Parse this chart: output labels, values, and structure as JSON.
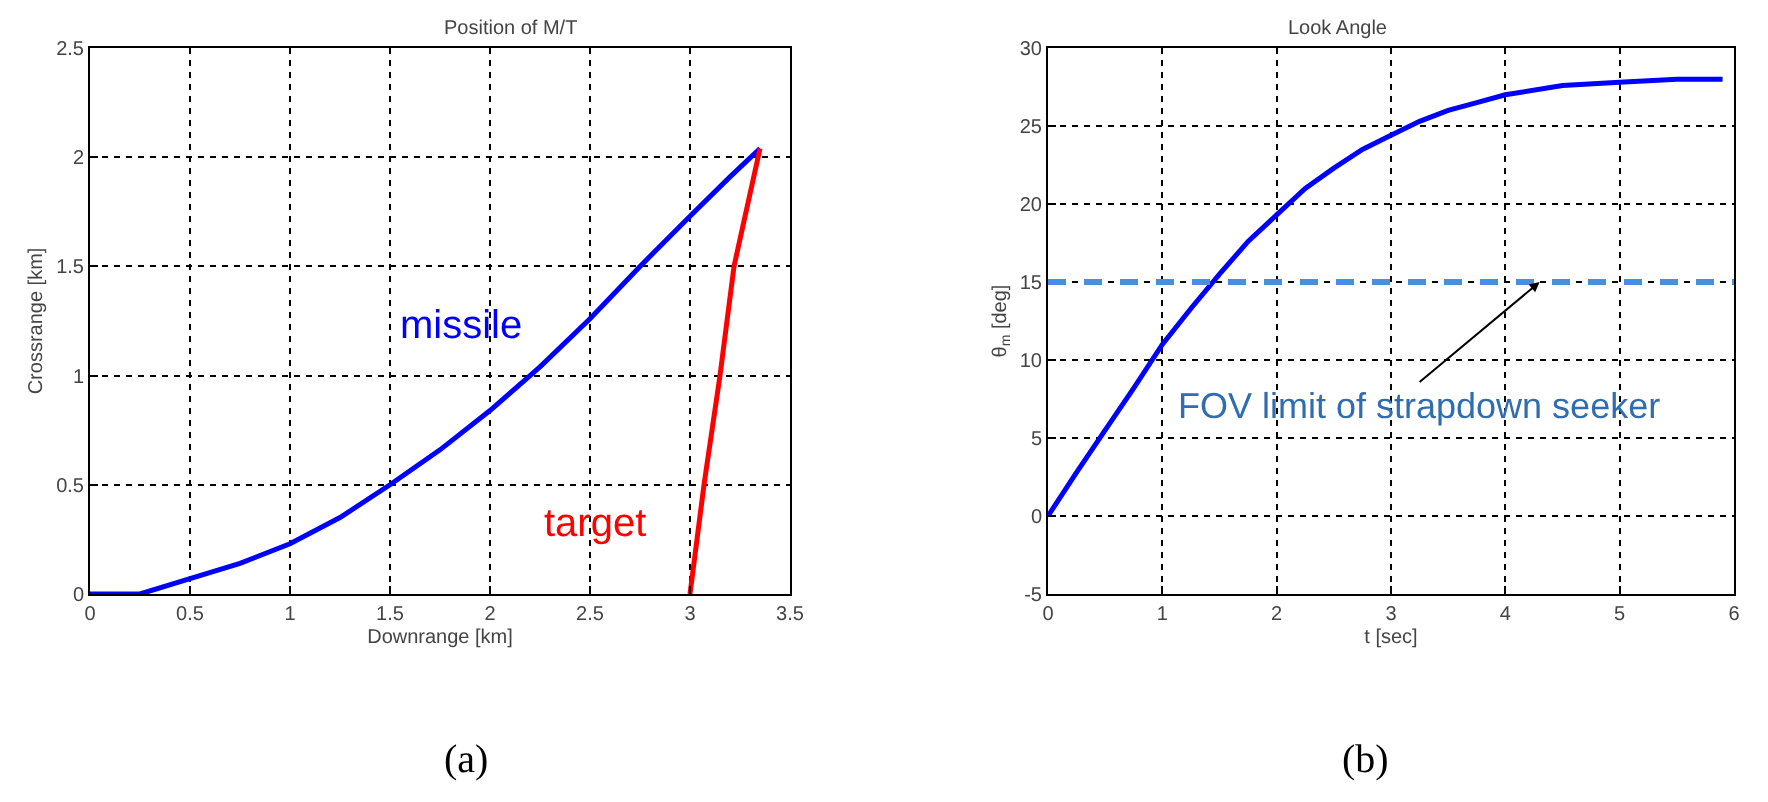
{
  "chart_data": [
    {
      "type": "line",
      "title": "Position of M/T",
      "xlabel": "Downrange [km]",
      "ylabel": "Crossrange [km]",
      "xlim": [
        0,
        3.5
      ],
      "xticks": [
        0,
        0.5,
        1,
        1.5,
        2,
        2.5,
        3,
        3.5
      ],
      "ylim": [
        0,
        2.5
      ],
      "yticks": [
        0,
        0.5,
        1,
        1.5,
        2,
        2.5
      ],
      "grid": true,
      "legend": false,
      "line_style": "solid",
      "marker": "none",
      "series": [
        {
          "name": "missile",
          "color": "#0000ff",
          "x": [
            0,
            0.25,
            0.5,
            0.75,
            1,
            1.25,
            1.5,
            1.75,
            2,
            2.25,
            2.5,
            2.75,
            3,
            3.2,
            3.35
          ],
          "values": [
            0,
            0,
            0.07,
            0.14,
            0.23,
            0.35,
            0.5,
            0.66,
            0.84,
            1.04,
            1.26,
            1.5,
            1.73,
            1.91,
            2.04
          ]
        },
        {
          "name": "target",
          "color": "#ff0000",
          "x": [
            3,
            3.07,
            3.15,
            3.22,
            3.35
          ],
          "values": [
            0,
            0.5,
            1,
            1.5,
            2.04
          ]
        }
      ],
      "annotations": [
        "(a)"
      ]
    },
    {
      "type": "line",
      "title": "Look Angle",
      "xlabel": "t [sec]",
      "ylabel": "θ$_{m}$ [deg]",
      "xlim": [
        0,
        6
      ],
      "xticks": [
        0,
        1,
        2,
        3,
        4,
        5,
        6
      ],
      "ylim": [
        -5,
        30
      ],
      "yticks": [
        -5,
        0,
        5,
        10,
        15,
        20,
        25,
        30
      ],
      "grid": true,
      "legend": false,
      "line_style": "solid",
      "marker": "none",
      "series": [
        {
          "color": "#0000ff",
          "x": [
            0,
            0.25,
            0.5,
            0.75,
            1,
            1.25,
            1.5,
            1.75,
            2,
            2.25,
            2.5,
            2.75,
            3,
            3.25,
            3.5,
            3.75,
            4,
            4.5,
            5,
            5.5,
            5.9
          ],
          "values": [
            0,
            2.8,
            5.5,
            8.2,
            11,
            13.3,
            15.5,
            17.6,
            19.3,
            21,
            22.3,
            23.5,
            24.4,
            25.3,
            26,
            26.5,
            27,
            27.6,
            27.8,
            28,
            28
          ]
        }
      ],
      "ref_lines": [
        {
          "axis": "y",
          "value": 15,
          "color": "#4a8fdc",
          "line_style": "dashed"
        }
      ],
      "annotations": [
        {
          "text": "FOV limit of strapdown seeker",
          "x": 4.3,
          "y": 15
        },
        "(b)"
      ]
    }
  ]
}
